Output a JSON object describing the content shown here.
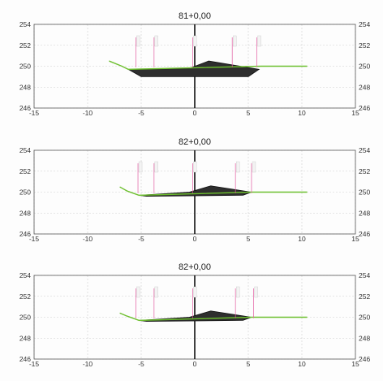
{
  "chart_data": [
    {
      "type": "line",
      "title": "81+0,00",
      "xlim": [
        -15,
        15
      ],
      "ylim": [
        246,
        254
      ],
      "xticks": [
        -15,
        -10,
        -5,
        0,
        5,
        10,
        15
      ],
      "yticks": [
        246,
        248,
        250,
        252,
        254
      ],
      "grid": true,
      "series": [
        {
          "role": "ground",
          "color": "#6dbf2e",
          "x": [
            -8,
            -6.8,
            -6.2,
            6.2,
            10.5
          ],
          "y": [
            250.5,
            250.0,
            249.7,
            250.0,
            250.0
          ]
        },
        {
          "role": "cut",
          "color": "#2e2e2e",
          "x": [
            -6.2,
            -5.0,
            5.0,
            6.0,
            1.3,
            -0.5,
            -5.0,
            -6.2
          ],
          "y": [
            249.7,
            249.0,
            249.0,
            249.7,
            250.5,
            249.8,
            249.7,
            249.7
          ]
        }
      ],
      "markers": [
        -5.5,
        -3.8,
        -0.2,
        3.5,
        5.8
      ]
    },
    {
      "type": "line",
      "title": "82+0,00",
      "xlim": [
        -15,
        15
      ],
      "ylim": [
        246,
        254
      ],
      "xticks": [
        -15,
        -10,
        -5,
        0,
        5,
        10,
        15
      ],
      "yticks": [
        246,
        248,
        250,
        252,
        254
      ],
      "grid": true,
      "series": [
        {
          "role": "ground",
          "color": "#6dbf2e",
          "x": [
            -7,
            -6.3,
            -5.2,
            5.3,
            10.5
          ],
          "y": [
            250.5,
            250.1,
            249.7,
            250.0,
            250.0
          ]
        },
        {
          "role": "cut",
          "color": "#2e2e2e",
          "x": [
            -5.2,
            -4.5,
            4.5,
            5.3,
            1.5,
            -0.5,
            -5.2
          ],
          "y": [
            249.7,
            249.6,
            249.7,
            250.0,
            250.6,
            250.0,
            249.7
          ]
        }
      ],
      "markers": [
        -5.3,
        -3.8,
        -0.2,
        3.8,
        5.3
      ]
    },
    {
      "type": "line",
      "title": "82+0,00",
      "xlim": [
        -15,
        15
      ],
      "ylim": [
        246,
        254
      ],
      "xticks": [
        -15,
        -10,
        -5,
        0,
        5,
        10,
        15
      ],
      "yticks": [
        246,
        248,
        250,
        252,
        254
      ],
      "grid": true,
      "series": [
        {
          "role": "ground",
          "color": "#6dbf2e",
          "x": [
            -7,
            -6.3,
            -5.2,
            5.3,
            10.5
          ],
          "y": [
            250.4,
            250.1,
            249.7,
            250.0,
            250.0
          ]
        },
        {
          "role": "cut",
          "color": "#2e2e2e",
          "x": [
            -5.2,
            -4.5,
            4.5,
            5.3,
            1.5,
            -0.5,
            -5.2
          ],
          "y": [
            249.7,
            249.6,
            249.7,
            250.0,
            250.6,
            250.0,
            249.7
          ]
        }
      ],
      "markers": [
        -5.5,
        -3.8,
        -0.2,
        3.8,
        5.5
      ]
    }
  ]
}
